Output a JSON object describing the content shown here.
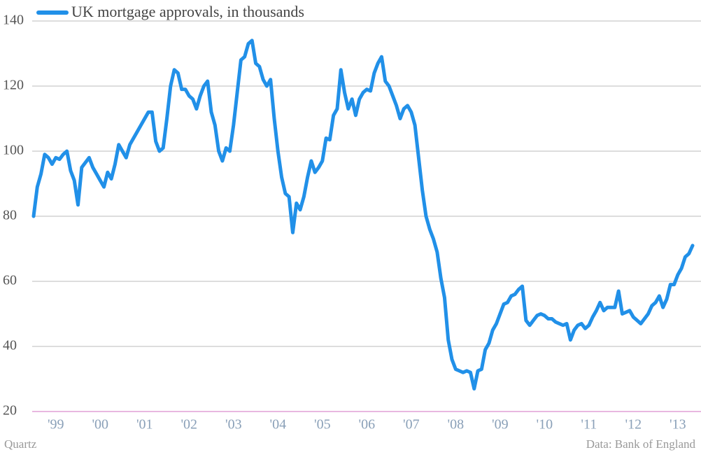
{
  "chart_data": {
    "type": "line",
    "categories": [
      null,
      null,
      null,
      null,
      null,
      null,
      "'99",
      null,
      null,
      null,
      null,
      null,
      null,
      null,
      null,
      null,
      null,
      null,
      "'00",
      null,
      null,
      null,
      null,
      null,
      null,
      null,
      null,
      null,
      null,
      null,
      "'01",
      null,
      null,
      null,
      null,
      null,
      null,
      null,
      null,
      null,
      null,
      null,
      "'02",
      null,
      null,
      null,
      null,
      null,
      null,
      null,
      null,
      null,
      null,
      null,
      "'03",
      null,
      null,
      null,
      null,
      null,
      null,
      null,
      null,
      null,
      null,
      null,
      "'04",
      null,
      null,
      null,
      null,
      null,
      null,
      null,
      null,
      null,
      null,
      null,
      "'05",
      null,
      null,
      null,
      null,
      null,
      null,
      null,
      null,
      null,
      null,
      null,
      "'06",
      null,
      null,
      null,
      null,
      null,
      null,
      null,
      null,
      null,
      null,
      null,
      "'07",
      null,
      null,
      null,
      null,
      null,
      null,
      null,
      null,
      null,
      null,
      null,
      "'08",
      null,
      null,
      null,
      null,
      null,
      null,
      null,
      null,
      null,
      null,
      null,
      "'09",
      null,
      null,
      null,
      null,
      null,
      null,
      null,
      null,
      null,
      null,
      null,
      "'10",
      null,
      null,
      null,
      null,
      null,
      null,
      null,
      null,
      null,
      null,
      null,
      "'11",
      null,
      null,
      null,
      null,
      null,
      null,
      null,
      null,
      null,
      null,
      null,
      "'12",
      null,
      null,
      null,
      null,
      null,
      null,
      null,
      null,
      null,
      null,
      null,
      "'13",
      null,
      null,
      null,
      null
    ],
    "series": [
      {
        "name": "UK mortgage approvals, in thousands",
        "color": "#2190e8",
        "values": [
          80,
          89,
          93,
          99,
          98,
          96,
          98,
          97.5,
          99,
          100,
          94,
          91,
          83.5,
          95,
          96.5,
          98,
          95,
          93,
          91,
          89,
          93.5,
          91.5,
          96,
          102,
          100,
          98,
          102,
          104,
          106,
          108,
          110,
          112,
          112,
          103,
          100,
          101,
          110,
          120,
          125,
          124,
          119,
          119,
          117,
          116,
          113,
          117,
          120,
          121.5,
          112,
          108,
          100,
          97,
          101,
          100,
          108,
          118,
          128,
          129,
          133,
          134,
          127,
          126,
          122,
          120,
          122,
          110,
          100,
          92,
          87,
          86,
          75,
          84,
          82,
          86,
          92,
          97,
          93.5,
          95,
          97,
          104,
          103.5,
          111,
          113,
          125,
          118,
          113,
          116,
          111,
          116,
          118,
          119,
          118.5,
          124,
          127,
          129,
          121.5,
          120,
          117,
          114,
          110,
          113,
          114,
          112,
          108,
          98,
          88,
          80,
          76,
          73,
          69,
          61,
          55,
          42,
          36,
          33,
          32.5,
          32,
          32.5,
          32,
          27,
          32.5,
          33,
          39,
          41,
          45,
          47,
          50,
          53,
          53.5,
          55.5,
          56,
          57.5,
          58.5,
          48,
          46.5,
          48,
          49.5,
          50,
          49.5,
          48.5,
          48.5,
          47.5,
          47,
          46.5,
          47,
          42,
          45,
          46.5,
          47,
          45.5,
          46.5,
          49,
          51,
          53.5,
          51,
          52,
          52,
          52,
          57,
          50,
          50.5,
          51,
          49,
          48,
          47,
          48.5,
          50,
          52.5,
          53.5,
          55.5,
          52,
          54.5,
          59,
          59,
          62,
          64,
          67.5,
          68.5,
          71
        ]
      }
    ],
    "ylim": [
      20,
      140
    ],
    "yticks": [
      20,
      40,
      60,
      80,
      100,
      120,
      140
    ],
    "grid": true,
    "credit": "Quartz",
    "source": "Data: Bank of England"
  }
}
